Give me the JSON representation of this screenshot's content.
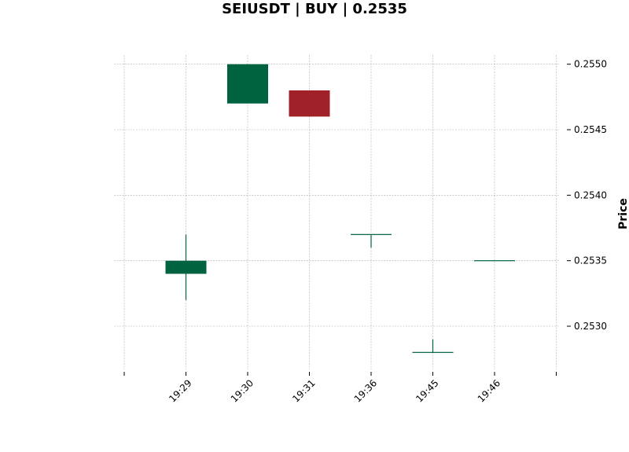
{
  "chart_data": {
    "type": "candlestick",
    "title": "SEIUSDT | BUY | 0.2535",
    "xlabel": "",
    "ylabel": "Price",
    "ylim": [
      0.25267,
      0.25507
    ],
    "grid": true,
    "y_axis_side": "right",
    "y_ticks": [
      "0.2530",
      "0.2535",
      "0.2540",
      "0.2545",
      "0.2550"
    ],
    "categories": [
      "19:29",
      "19:30",
      "19:31",
      "19:36",
      "19:45",
      "19:46"
    ],
    "candles": [
      {
        "time": "19:29",
        "open": 0.2534,
        "high": 0.2537,
        "low": 0.2532,
        "close": 0.2535
      },
      {
        "time": "19:30",
        "open": 0.2547,
        "high": 0.255,
        "low": 0.2547,
        "close": 0.255
      },
      {
        "time": "19:31",
        "open": 0.2548,
        "high": 0.2548,
        "low": 0.2546,
        "close": 0.2546
      },
      {
        "time": "19:36",
        "open": 0.2537,
        "high": 0.2537,
        "low": 0.2536,
        "close": 0.2537
      },
      {
        "time": "19:45",
        "open": 0.2528,
        "high": 0.2529,
        "low": 0.2528,
        "close": 0.2528
      },
      {
        "time": "19:46",
        "open": 0.2535,
        "high": 0.2535,
        "low": 0.2535,
        "close": 0.2535
      }
    ],
    "colors": {
      "up": "#006340",
      "down": "#a02128",
      "grid": "#b0b0b0"
    }
  }
}
